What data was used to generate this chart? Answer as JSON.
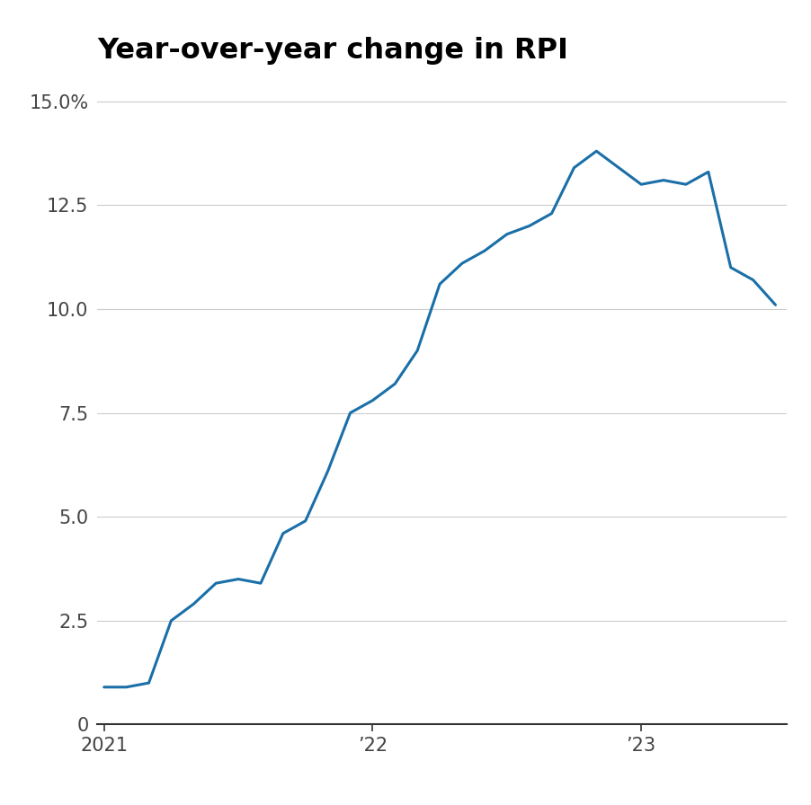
{
  "title": "Year-over-year change in RPI",
  "title_fontsize": 23,
  "title_fontweight": "semibold",
  "line_color": "#1a6fa8",
  "line_width": 2.2,
  "background_color": "#ffffff",
  "ylim": [
    0,
    15.5
  ],
  "yticks": [
    0,
    2.5,
    5.0,
    7.5,
    10.0,
    12.5,
    15.0
  ],
  "ytick_labels": [
    "0",
    "2.5",
    "5.0",
    "7.5",
    "10.0",
    "12.5",
    "15.0%"
  ],
  "grid_color": "#cccccc",
  "axis_color": "#333333",
  "xlim_start": 0,
  "xlim_end": 30,
  "xtick_positions": [
    0,
    12,
    24
  ],
  "xtick_labels": [
    "2021",
    "’22",
    "’23"
  ],
  "data": [
    {
      "month": 0,
      "value": 0.9
    },
    {
      "month": 1,
      "value": 0.9
    },
    {
      "month": 2,
      "value": 1.0
    },
    {
      "month": 3,
      "value": 2.5
    },
    {
      "month": 4,
      "value": 2.9
    },
    {
      "month": 5,
      "value": 3.4
    },
    {
      "month": 6,
      "value": 3.5
    },
    {
      "month": 7,
      "value": 3.4
    },
    {
      "month": 8,
      "value": 4.6
    },
    {
      "month": 9,
      "value": 4.9
    },
    {
      "month": 10,
      "value": 6.1
    },
    {
      "month": 11,
      "value": 7.5
    },
    {
      "month": 12,
      "value": 7.8
    },
    {
      "month": 13,
      "value": 8.2
    },
    {
      "month": 14,
      "value": 9.0
    },
    {
      "month": 15,
      "value": 10.6
    },
    {
      "month": 16,
      "value": 11.1
    },
    {
      "month": 17,
      "value": 11.4
    },
    {
      "month": 18,
      "value": 11.8
    },
    {
      "month": 19,
      "value": 12.0
    },
    {
      "month": 20,
      "value": 12.3
    },
    {
      "month": 21,
      "value": 13.4
    },
    {
      "month": 22,
      "value": 13.8
    },
    {
      "month": 23,
      "value": 13.4
    },
    {
      "month": 24,
      "value": 13.0
    },
    {
      "month": 25,
      "value": 13.1
    },
    {
      "month": 26,
      "value": 13.0
    },
    {
      "month": 27,
      "value": 13.3
    },
    {
      "month": 28,
      "value": 11.0
    },
    {
      "month": 29,
      "value": 10.7
    },
    {
      "month": 30,
      "value": 10.1
    }
  ]
}
